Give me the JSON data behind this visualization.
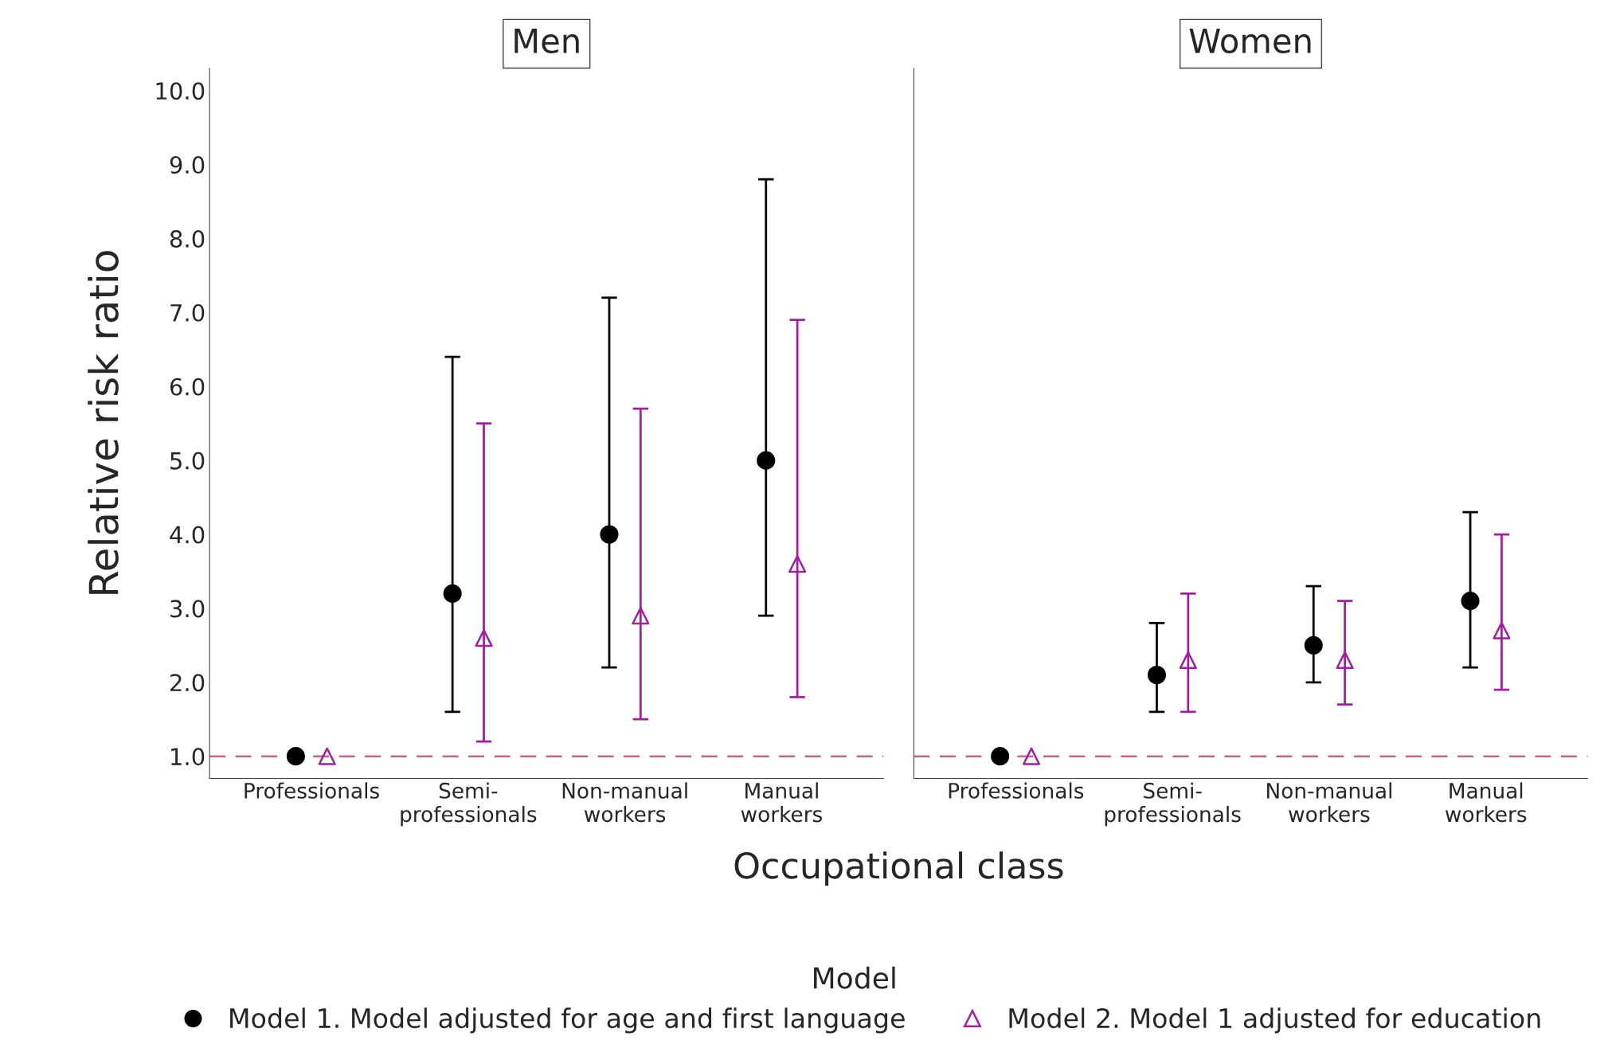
{
  "chart_data": [
    {
      "type": "scatter",
      "title": "Men",
      "xlabel": "Occupational class",
      "ylabel": "Relative risk ratio",
      "legend_title": "Model",
      "legend": "bottom",
      "grid": false,
      "categories": [
        "Professionals",
        "Semi-\nprofessionals",
        "Non-manual\nworkers",
        "Manual\nworkers"
      ],
      "ylim": [
        0.7,
        10.3
      ],
      "yticks": [
        {
          "value": 1,
          "label": "1.0"
        },
        {
          "value": 2,
          "label": "2.0"
        },
        {
          "value": 3,
          "label": "3.0"
        },
        {
          "value": 4,
          "label": "4.0"
        },
        {
          "value": 5,
          "label": "5.0"
        },
        {
          "value": 6,
          "label": "6.0"
        },
        {
          "value": 7,
          "label": "7.0"
        },
        {
          "value": 8,
          "label": "8.0"
        },
        {
          "value": 9,
          "label": "9.0"
        },
        {
          "value": 10,
          "label": "10.0"
        }
      ],
      "ref_lines": [
        {
          "axis": "y",
          "value": 1,
          "color": "#d4607a",
          "line_style": "dashed"
        }
      ],
      "series": [
        {
          "name": "Model 1. Model adjusted for age and first language",
          "color": "#000000",
          "marker": "circle",
          "values": [
            1.0,
            3.2,
            4.0,
            5.0
          ],
          "errors": [
            null,
            [
              1.6,
              6.4
            ],
            [
              2.2,
              7.2
            ],
            [
              2.9,
              8.8
            ]
          ]
        },
        {
          "name": "Model 2. Model 1 adjusted for education",
          "color": "#a020a0",
          "marker": "triangle",
          "values": [
            1.0,
            2.6,
            2.9,
            3.6
          ],
          "errors": [
            null,
            [
              1.2,
              5.5
            ],
            [
              1.5,
              5.7
            ],
            [
              1.8,
              6.9
            ]
          ]
        }
      ]
    },
    {
      "type": "scatter",
      "title": "Women",
      "grid": false,
      "tick_labels": "x",
      "categories": [
        "Professionals",
        "Semi-\nprofessionals",
        "Non-manual\nworkers",
        "Manual\nworkers"
      ],
      "ylim": [
        0.7,
        10.3
      ],
      "ref_lines": [
        {
          "axis": "y",
          "value": 1,
          "color": "#d4607a",
          "line_style": "dashed"
        }
      ],
      "series": [
        {
          "color": "#000000",
          "marker": "circle",
          "values": [
            1.0,
            2.1,
            2.5,
            3.1
          ],
          "errors": [
            null,
            [
              1.6,
              2.8
            ],
            [
              2.0,
              3.3
            ],
            [
              2.2,
              4.3
            ]
          ]
        },
        {
          "color": "#a020a0",
          "marker": "triangle",
          "values": [
            1.0,
            2.3,
            2.3,
            2.7
          ],
          "errors": [
            null,
            [
              1.6,
              3.2
            ],
            [
              1.7,
              3.1
            ],
            [
              1.9,
              4.0
            ]
          ]
        }
      ]
    }
  ]
}
